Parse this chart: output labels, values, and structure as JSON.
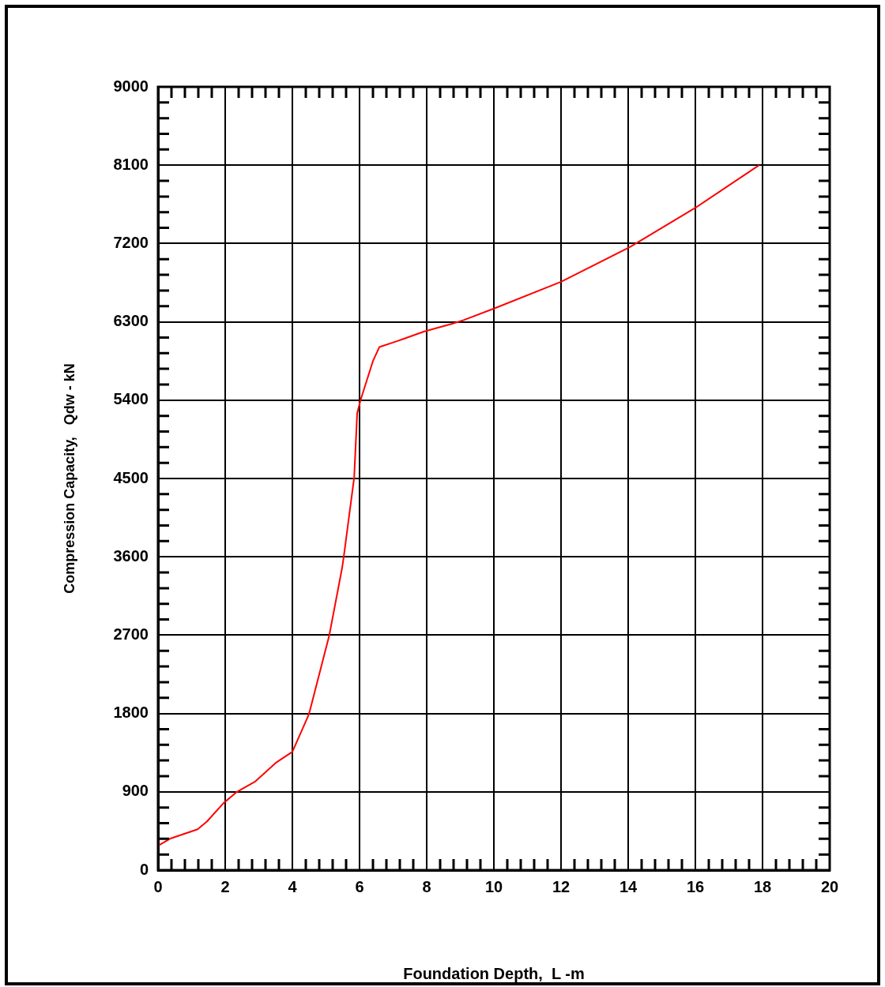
{
  "chart_data": {
    "type": "line",
    "xlabel": "Foundation Depth,  L -m",
    "ylabel": "Compression Capacity,   Qdw - kN",
    "x": [
      0,
      0.35,
      1.18,
      1.46,
      1.95,
      2.35,
      2.9,
      3.53,
      4.0,
      4.47,
      4.52,
      5.1,
      5.48,
      5.53,
      5.84,
      5.93,
      6.03,
      6.4,
      6.59,
      7.13,
      7.93,
      8.78,
      9.1,
      10.05,
      12.0,
      14.05,
      16.0,
      17.9
    ],
    "series": [
      {
        "color": "#ff0000",
        "values": [
          280,
          360,
          470,
          560,
          770,
          900,
          1020,
          1240,
          1360,
          1770,
          1830,
          2700,
          3470,
          3600,
          4510,
          5250,
          5400,
          5850,
          6010,
          6080,
          6190,
          6280,
          6320,
          6460,
          6760,
          7160,
          7610,
          8100
        ]
      }
    ],
    "xlim": [
      0,
      20
    ],
    "xticks": [
      0,
      {
        "value": 0.4,
        "label": null
      },
      {
        "value": 0.8,
        "label": null
      },
      {
        "value": 1.2,
        "label": null
      },
      {
        "value": 1.6,
        "label": null
      },
      2,
      {
        "value": 2.4,
        "label": null
      },
      {
        "value": 2.8,
        "label": null
      },
      {
        "value": 3.2,
        "label": null
      },
      {
        "value": 3.6,
        "label": null
      },
      4,
      {
        "value": 4.4,
        "label": null
      },
      {
        "value": 4.8,
        "label": null
      },
      {
        "value": 5.2,
        "label": null
      },
      {
        "value": 5.6,
        "label": null
      },
      6,
      {
        "value": 6.4,
        "label": null
      },
      {
        "value": 6.8,
        "label": null
      },
      {
        "value": 7.2,
        "label": null
      },
      {
        "value": 7.6,
        "label": null
      },
      8,
      {
        "value": 8.4,
        "label": null
      },
      {
        "value": 8.8,
        "label": null
      },
      {
        "value": 9.2,
        "label": null
      },
      {
        "value": 9.6,
        "label": null
      },
      10,
      {
        "value": 10.4,
        "label": null
      },
      {
        "value": 10.8,
        "label": null
      },
      {
        "value": 11.2,
        "label": null
      },
      {
        "value": 11.6,
        "label": null
      },
      12,
      {
        "value": 12.4,
        "label": null
      },
      {
        "value": 12.8,
        "label": null
      },
      {
        "value": 13.2,
        "label": null
      },
      {
        "value": 13.6,
        "label": null
      },
      14,
      {
        "value": 14.4,
        "label": null
      },
      {
        "value": 14.8,
        "label": null
      },
      {
        "value": 15.2,
        "label": null
      },
      {
        "value": 15.6,
        "label": null
      },
      16,
      {
        "value": 16.4,
        "label": null
      },
      {
        "value": 16.8,
        "label": null
      },
      {
        "value": 17.2,
        "label": null
      },
      {
        "value": 17.6,
        "label": null
      },
      18,
      {
        "value": 18.4,
        "label": null
      },
      {
        "value": 18.8,
        "label": null
      },
      {
        "value": 19.2,
        "label": null
      },
      {
        "value": 19.6,
        "label": null
      },
      20
    ],
    "ylim": [
      0,
      9000
    ],
    "yticks": [
      0,
      {
        "value": 180,
        "label": null
      },
      {
        "value": 360,
        "label": null
      },
      {
        "value": 540,
        "label": null
      },
      {
        "value": 720,
        "label": null
      },
      900,
      {
        "value": 1080,
        "label": null
      },
      {
        "value": 1260,
        "label": null
      },
      {
        "value": 1440,
        "label": null
      },
      {
        "value": 1620,
        "label": null
      },
      1800,
      {
        "value": 1980,
        "label": null
      },
      {
        "value": 2160,
        "label": null
      },
      {
        "value": 2340,
        "label": null
      },
      {
        "value": 2520,
        "label": null
      },
      2700,
      {
        "value": 2880,
        "label": null
      },
      {
        "value": 3060,
        "label": null
      },
      {
        "value": 3240,
        "label": null
      },
      {
        "value": 3420,
        "label": null
      },
      3600,
      {
        "value": 3780,
        "label": null
      },
      {
        "value": 3960,
        "label": null
      },
      {
        "value": 4140,
        "label": null
      },
      {
        "value": 4320,
        "label": null
      },
      4500,
      {
        "value": 4680,
        "label": null
      },
      {
        "value": 4860,
        "label": null
      },
      {
        "value": 5040,
        "label": null
      },
      {
        "value": 5220,
        "label": null
      },
      5400,
      {
        "value": 5580,
        "label": null
      },
      {
        "value": 5760,
        "label": null
      },
      {
        "value": 5940,
        "label": null
      },
      {
        "value": 6120,
        "label": null
      },
      6300,
      {
        "value": 6480,
        "label": null
      },
      {
        "value": 6660,
        "label": null
      },
      {
        "value": 6840,
        "label": null
      },
      {
        "value": 7020,
        "label": null
      },
      7200,
      {
        "value": 7380,
        "label": null
      },
      {
        "value": 7560,
        "label": null
      },
      {
        "value": 7740,
        "label": null
      },
      {
        "value": 7920,
        "label": null
      },
      8100,
      {
        "value": 8280,
        "label": null
      },
      {
        "value": 8460,
        "label": null
      },
      {
        "value": 8640,
        "label": null
      },
      {
        "value": 8820,
        "label": null
      },
      9000
    ],
    "grid": true,
    "marker": "none",
    "line_style": "solid",
    "legend": false
  }
}
